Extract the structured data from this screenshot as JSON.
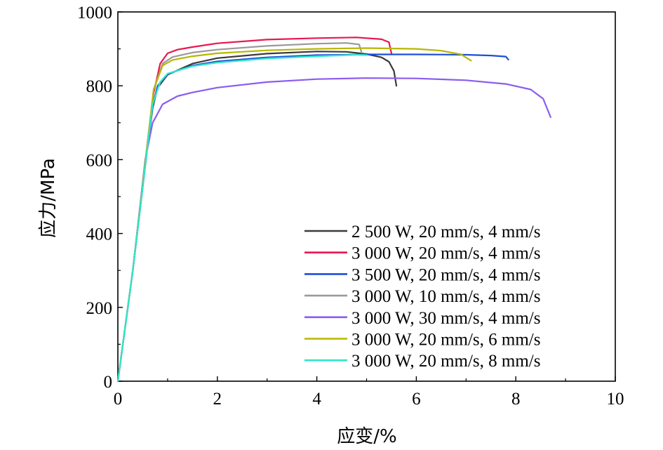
{
  "chart_data": {
    "type": "line",
    "title": "",
    "xlabel": "应变/%",
    "ylabel": "应力/MPa",
    "xlim": [
      0,
      10
    ],
    "ylim": [
      0,
      1000
    ],
    "xticks": [
      "0",
      "2",
      "4",
      "6",
      "8",
      "10"
    ],
    "yticks": [
      "0",
      "200",
      "400",
      "600",
      "800",
      "1000"
    ],
    "grid": false,
    "legend_position": "bottom-right",
    "series": [
      {
        "name": "2 500 W, 20 mm/s, 4 mm/s",
        "color": "#3a3a3a",
        "points": [
          [
            0,
            0
          ],
          [
            0.3,
            300
          ],
          [
            0.6,
            640
          ],
          [
            0.7,
            740
          ],
          [
            0.8,
            795
          ],
          [
            1.0,
            830
          ],
          [
            1.5,
            860
          ],
          [
            2.0,
            875
          ],
          [
            3.0,
            887
          ],
          [
            4.0,
            893
          ],
          [
            4.6,
            892
          ],
          [
            5.0,
            886
          ],
          [
            5.3,
            877
          ],
          [
            5.45,
            865
          ],
          [
            5.55,
            840
          ],
          [
            5.6,
            800
          ]
        ]
      },
      {
        "name": "3 000 W, 20 mm/s, 4 mm/s",
        "color": "#e8174f",
        "points": [
          [
            0,
            0
          ],
          [
            0.3,
            300
          ],
          [
            0.6,
            650
          ],
          [
            0.72,
            780
          ],
          [
            0.85,
            860
          ],
          [
            1.0,
            888
          ],
          [
            1.2,
            898
          ],
          [
            1.5,
            905
          ],
          [
            2.0,
            915
          ],
          [
            3.0,
            925
          ],
          [
            4.0,
            929
          ],
          [
            4.8,
            931
          ],
          [
            5.3,
            926
          ],
          [
            5.45,
            918
          ],
          [
            5.48,
            900
          ],
          [
            5.5,
            888
          ]
        ]
      },
      {
        "name": "3 500 W, 20 mm/s, 4 mm/s",
        "color": "#1c4fd8",
        "points": [
          [
            0,
            0
          ],
          [
            0.3,
            300
          ],
          [
            0.6,
            640
          ],
          [
            0.7,
            745
          ],
          [
            0.8,
            800
          ],
          [
            1.0,
            832
          ],
          [
            1.5,
            855
          ],
          [
            2.0,
            866
          ],
          [
            3.0,
            877
          ],
          [
            4.0,
            883
          ],
          [
            5.0,
            885
          ],
          [
            6.0,
            885
          ],
          [
            7.0,
            884
          ],
          [
            7.5,
            882
          ],
          [
            7.8,
            879
          ],
          [
            7.85,
            871
          ]
        ]
      },
      {
        "name": "3 000 W, 10 mm/s, 4 mm/s",
        "color": "#9a9a9a",
        "points": [
          [
            0,
            0
          ],
          [
            0.3,
            300
          ],
          [
            0.6,
            650
          ],
          [
            0.72,
            790
          ],
          [
            0.9,
            860
          ],
          [
            1.1,
            878
          ],
          [
            1.5,
            890
          ],
          [
            2.0,
            898
          ],
          [
            3.0,
            908
          ],
          [
            4.0,
            914
          ],
          [
            4.6,
            916
          ],
          [
            4.85,
            912
          ],
          [
            4.9,
            890
          ]
        ]
      },
      {
        "name": "3 000 W, 30 mm/s, 4 mm/s",
        "color": "#8a5cf0",
        "points": [
          [
            0,
            0
          ],
          [
            0.3,
            300
          ],
          [
            0.55,
            600
          ],
          [
            0.7,
            700
          ],
          [
            0.9,
            750
          ],
          [
            1.2,
            772
          ],
          [
            1.5,
            782
          ],
          [
            2.0,
            795
          ],
          [
            3.0,
            810
          ],
          [
            4.0,
            818
          ],
          [
            5.0,
            821
          ],
          [
            6.0,
            820
          ],
          [
            7.0,
            815
          ],
          [
            7.8,
            805
          ],
          [
            8.3,
            790
          ],
          [
            8.55,
            765
          ],
          [
            8.7,
            715
          ]
        ]
      },
      {
        "name": "3 000 W, 20 mm/s, 6 mm/s",
        "color": "#b7b700",
        "points": [
          [
            0,
            0
          ],
          [
            0.3,
            300
          ],
          [
            0.6,
            650
          ],
          [
            0.72,
            790
          ],
          [
            0.9,
            855
          ],
          [
            1.1,
            870
          ],
          [
            1.5,
            880
          ],
          [
            2.0,
            888
          ],
          [
            3.0,
            896
          ],
          [
            4.0,
            900
          ],
          [
            5.0,
            902
          ],
          [
            6.0,
            900
          ],
          [
            6.5,
            895
          ],
          [
            6.9,
            885
          ],
          [
            7.1,
            868
          ]
        ]
      },
      {
        "name": "3 000 W, 20 mm/s, 8 mm/s",
        "color": "#2ee6c8",
        "points": [
          [
            0,
            0
          ],
          [
            0.3,
            300
          ],
          [
            0.6,
            640
          ],
          [
            0.7,
            750
          ],
          [
            0.85,
            810
          ],
          [
            1.0,
            833
          ],
          [
            1.5,
            853
          ],
          [
            2.0,
            863
          ],
          [
            3.0,
            874
          ],
          [
            4.0,
            880
          ],
          [
            4.8,
            884
          ],
          [
            5.0,
            883
          ]
        ]
      }
    ]
  }
}
